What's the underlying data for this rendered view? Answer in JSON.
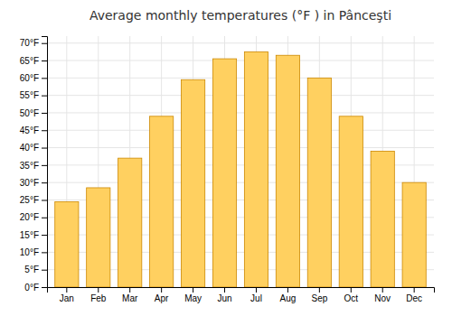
{
  "chart_data": {
    "type": "bar",
    "title": "Average monthly temperatures (°F ) in Pânceşti",
    "categories": [
      "Jan",
      "Feb",
      "Mar",
      "Apr",
      "May",
      "Jun",
      "Jul",
      "Aug",
      "Sep",
      "Oct",
      "Nov",
      "Dec"
    ],
    "values": [
      24.5,
      28.5,
      37.0,
      49.0,
      59.5,
      65.5,
      67.5,
      66.5,
      60.0,
      49.0,
      39.0,
      30.0
    ],
    "color": "#FFD060",
    "ylim": [
      0,
      72
    ],
    "yticks": [
      {
        "value": 0,
        "label": "0°F"
      },
      {
        "value": 5,
        "label": "5°F"
      },
      {
        "value": 10,
        "label": "10°F"
      },
      {
        "value": 15,
        "label": "15°F"
      },
      {
        "value": 20,
        "label": "20°F"
      },
      {
        "value": 25,
        "label": "25°F"
      },
      {
        "value": 30,
        "label": "30°F"
      },
      {
        "value": 35,
        "label": "35°F"
      },
      {
        "value": 40,
        "label": "40°F"
      },
      {
        "value": 45,
        "label": "45°F"
      },
      {
        "value": 50,
        "label": "50°F"
      },
      {
        "value": 55,
        "label": "55°F"
      },
      {
        "value": 60,
        "label": "60°F"
      },
      {
        "value": 65,
        "label": "65°F"
      },
      {
        "value": 70,
        "label": "70°F"
      }
    ],
    "grid": true
  }
}
